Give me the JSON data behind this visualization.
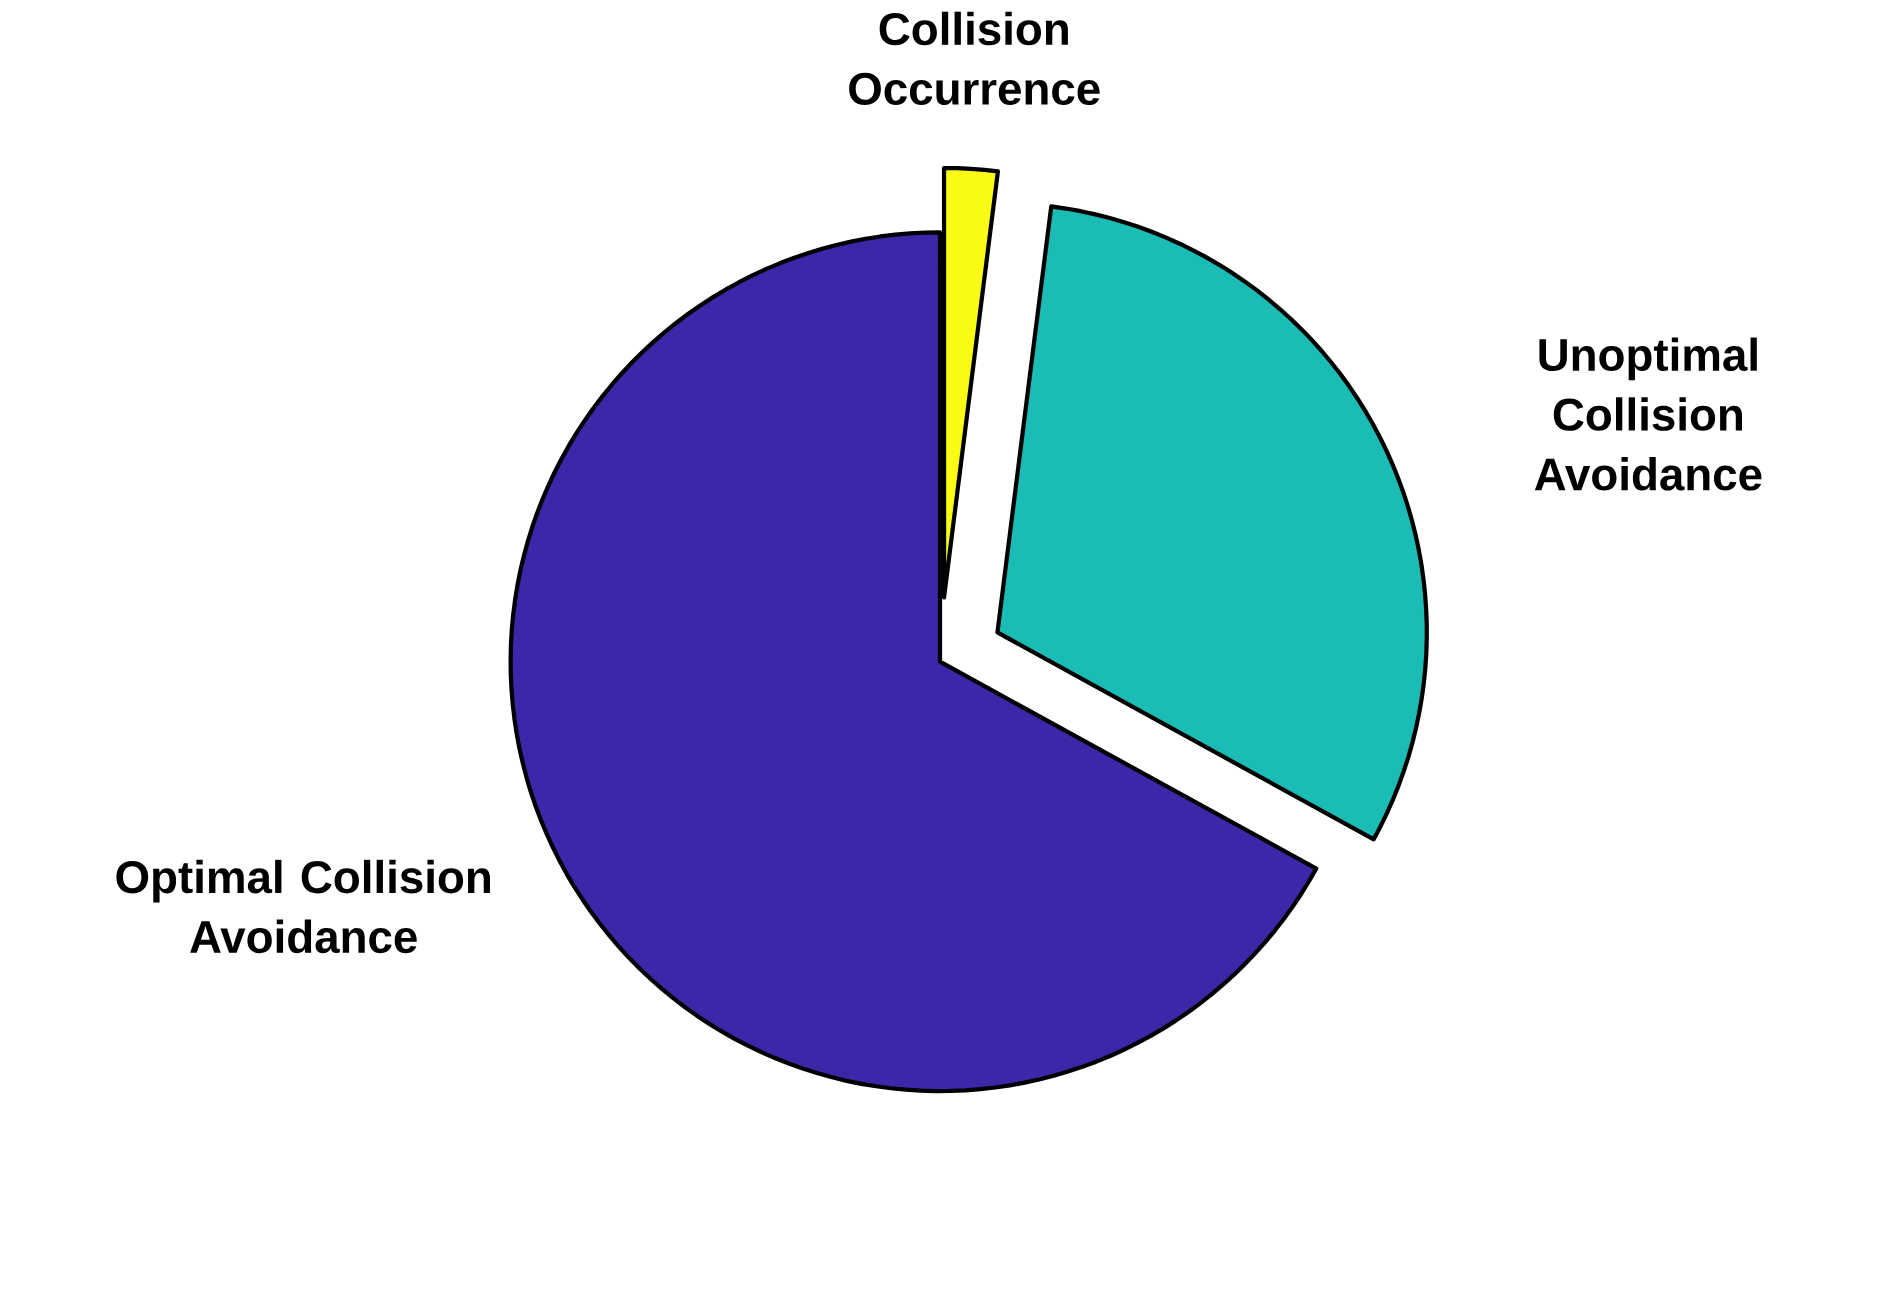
{
  "chart_data": {
    "type": "pie",
    "categories": [
      "Collision Occurrence",
      "Unoptimal Collision Avoidance",
      "Optimal Collision Avoidance"
    ],
    "values": [
      2,
      31,
      67
    ],
    "colors": [
      "#f9fb15",
      "#1abcb5",
      "#3d26a8"
    ]
  }
}
